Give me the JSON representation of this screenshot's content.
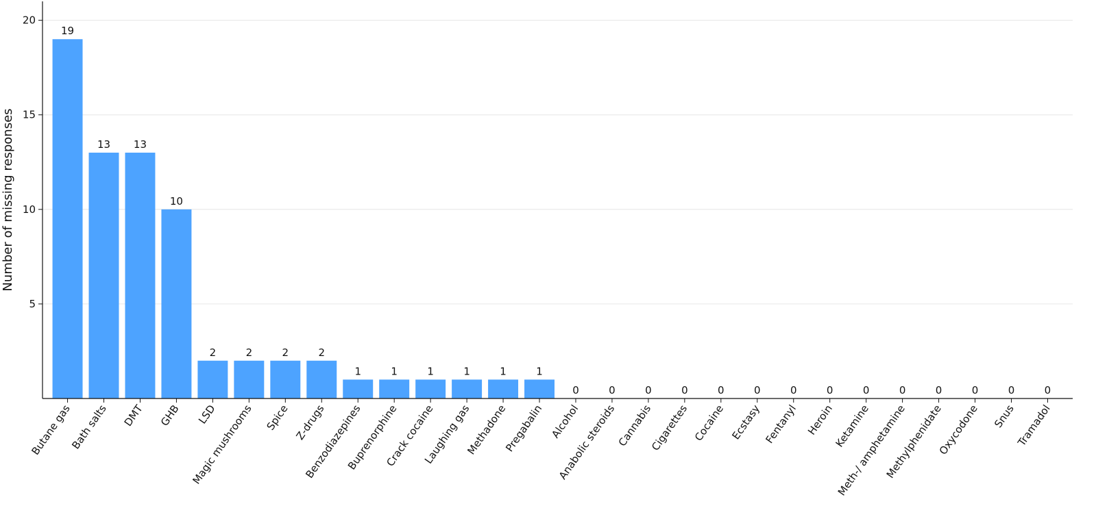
{
  "chart_data": {
    "type": "bar",
    "y_label": "Number of missing responses",
    "categories": [
      "Butane gas",
      "Bath salts",
      "DMT",
      "GHB",
      "LSD",
      "Magic mushrooms",
      "Spice",
      "Z-drugs",
      "Benzodiazepines",
      "Buprenorphine",
      "Crack cocaine",
      "Laughing gas",
      "Methadone",
      "Pregabalin",
      "Alcohol",
      "Anabolic steroids",
      "Cannabis",
      "Cigarettes",
      "Cocaine",
      "Ecstasy",
      "Fentanyl",
      "Heroin",
      "Ketamine",
      "Meth-/ amphetamine",
      "Methylphenidate",
      "Oxycodone",
      "Snus",
      "Tramadol"
    ],
    "values": [
      19,
      13,
      13,
      10,
      2,
      2,
      2,
      2,
      1,
      1,
      1,
      1,
      1,
      1,
      0,
      0,
      0,
      0,
      0,
      0,
      0,
      0,
      0,
      0,
      0,
      0,
      0,
      0
    ],
    "color": "#4da3ff",
    "ylim": [
      0,
      21
    ],
    "yticks": [
      5,
      10,
      15,
      20
    ],
    "grid": true
  }
}
